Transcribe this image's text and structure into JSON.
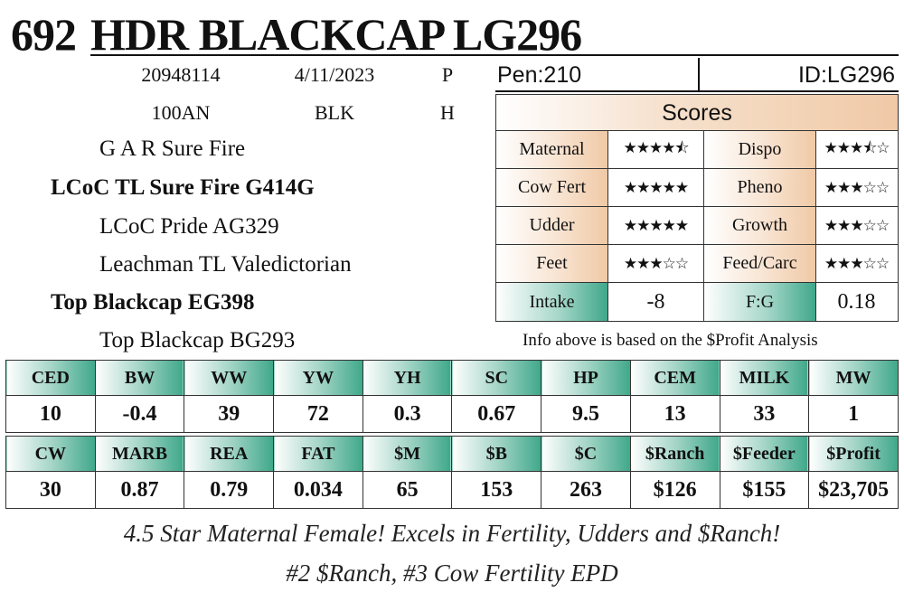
{
  "header": {
    "lot": "692",
    "name": "HDR BLACKCAP LG296"
  },
  "info": {
    "row1": [
      "20948114",
      "4/11/2023",
      "P"
    ],
    "row2": [
      "100AN",
      "BLK",
      "H"
    ]
  },
  "pedigree": {
    "sire_sire": "G A R Sure Fire",
    "sire": "LCoC TL Sure Fire G414G",
    "sire_dam": "LCoC Pride AG329",
    "dam_sire": "Leachman TL Valedictorian",
    "dam": "Top Blackcap EG398",
    "dam_dam": "Top Blackcap BG293"
  },
  "pen": "Pen:210",
  "id": "ID:LG296",
  "scores": {
    "title": "Scores",
    "rows": [
      {
        "l1": "Maternal",
        "v1": "★★★★⯪",
        "l2": "Dispo",
        "v2": "★★★⯪☆"
      },
      {
        "l1": "Cow Fert",
        "v1": "★★★★★",
        "l2": "Pheno",
        "v2": "★★★☆☆"
      },
      {
        "l1": "Udder",
        "v1": "★★★★★",
        "l2": "Growth",
        "v2": "★★★☆☆"
      },
      {
        "l1": "Feet",
        "v1": "★★★☆☆",
        "l2": "Feed/Carc",
        "v2": "★★★☆☆"
      },
      {
        "l1": "Intake",
        "v1": "-8",
        "l2": "F:G",
        "v2": "0.18"
      }
    ],
    "ratings": {
      "Maternal": 4.5,
      "Dispo": 3.5,
      "Cow Fert": 5,
      "Pheno": 3,
      "Udder": 5,
      "Growth": 3,
      "Feet": 3,
      "Feed/Carc": 3
    }
  },
  "note": "Info above is based on the $Profit Analysis",
  "epd1": {
    "headers": [
      "CED",
      "BW",
      "WW",
      "YW",
      "YH",
      "SC",
      "HP",
      "CEM",
      "MILK",
      "MW"
    ],
    "values": [
      "10",
      "-0.4",
      "39",
      "72",
      "0.3",
      "0.67",
      "9.5",
      "13",
      "33",
      "1"
    ]
  },
  "epd2": {
    "headers": [
      "CW",
      "MARB",
      "REA",
      "FAT",
      "$M",
      "$B",
      "$C",
      "$Ranch",
      "$Feeder",
      "$Profit"
    ],
    "values": [
      "30",
      "0.87",
      "0.79",
      "0.034",
      "65",
      "153",
      "263",
      "$126",
      "$155",
      "$23,705"
    ]
  },
  "footer": {
    "line1": "4.5 Star Maternal Female! Excels in Fertility, Udders and $Ranch!",
    "line2": "#2 $Ranch, #3 Cow Fertility EPD"
  },
  "colors": {
    "peach": "#f0c9a6",
    "green": "#3fa88a"
  }
}
